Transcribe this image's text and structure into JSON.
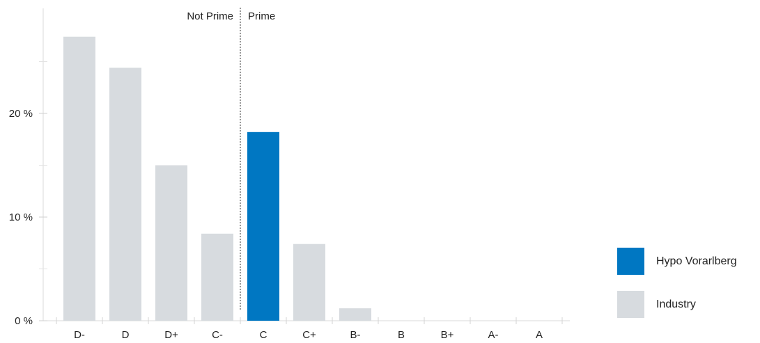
{
  "chart_data": {
    "type": "bar",
    "title": "",
    "xlabel": "",
    "ylabel": "",
    "categories": [
      "D-",
      "D",
      "D+",
      "C-",
      "C",
      "C+",
      "B-",
      "B",
      "B+",
      "A-",
      "A"
    ],
    "series": [
      {
        "name": "Hypo Vorarlberg",
        "color": "#0077c2",
        "values": [
          0,
          0,
          0,
          0,
          18.2,
          0,
          0,
          0,
          0,
          0,
          0
        ]
      },
      {
        "name": "Industry",
        "color": "#d7dbdf",
        "values": [
          27.4,
          24.4,
          15.0,
          8.4,
          0,
          7.4,
          1.2,
          0,
          0,
          0,
          0
        ]
      }
    ],
    "ylim": [
      0,
      30
    ],
    "yticks": [
      {
        "value": 0,
        "label": "0 %"
      },
      {
        "value": 10,
        "label": "10 %"
      },
      {
        "value": 20,
        "label": "20 %"
      }
    ],
    "yminor": [
      5,
      15,
      25
    ],
    "grid": false,
    "legend_position": "right",
    "annotations": {
      "divider_after_category": "C-",
      "left_label": "Not Prime",
      "right_label": "Prime"
    }
  }
}
